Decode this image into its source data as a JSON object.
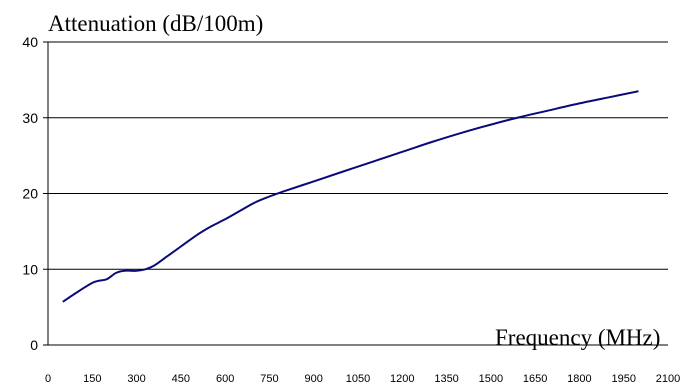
{
  "chart_data": {
    "type": "line",
    "title": "",
    "ylabel": "Attenuation (dB/100m)",
    "xlabel": "Frequency (MHz)",
    "xlim": [
      0,
      2100
    ],
    "ylim": [
      0,
      40
    ],
    "xticks": [
      0,
      150,
      300,
      450,
      600,
      750,
      900,
      1050,
      1200,
      1350,
      1500,
      1650,
      1800,
      1950,
      2100
    ],
    "yticks": [
      0,
      10,
      20,
      30,
      40
    ],
    "grid": true,
    "series": [
      {
        "color": "#0a0a78",
        "x": [
          50,
          100,
          150,
          175,
          200,
          230,
          260,
          300,
          330,
          360,
          400,
          450,
          500,
          550,
          600,
          650,
          700,
          750,
          800,
          900,
          1000,
          1100,
          1200,
          1300,
          1400,
          1500,
          1600,
          1700,
          1800,
          1900,
          2000
        ],
        "y": [
          5.7,
          7.0,
          8.2,
          8.5,
          8.7,
          9.5,
          9.8,
          9.8,
          10.0,
          10.5,
          11.6,
          13.0,
          14.4,
          15.6,
          16.6,
          17.7,
          18.8,
          19.6,
          20.3,
          21.6,
          22.9,
          24.2,
          25.5,
          26.8,
          28.0,
          29.1,
          30.1,
          31.0,
          31.9,
          32.7,
          33.5
        ]
      }
    ]
  }
}
